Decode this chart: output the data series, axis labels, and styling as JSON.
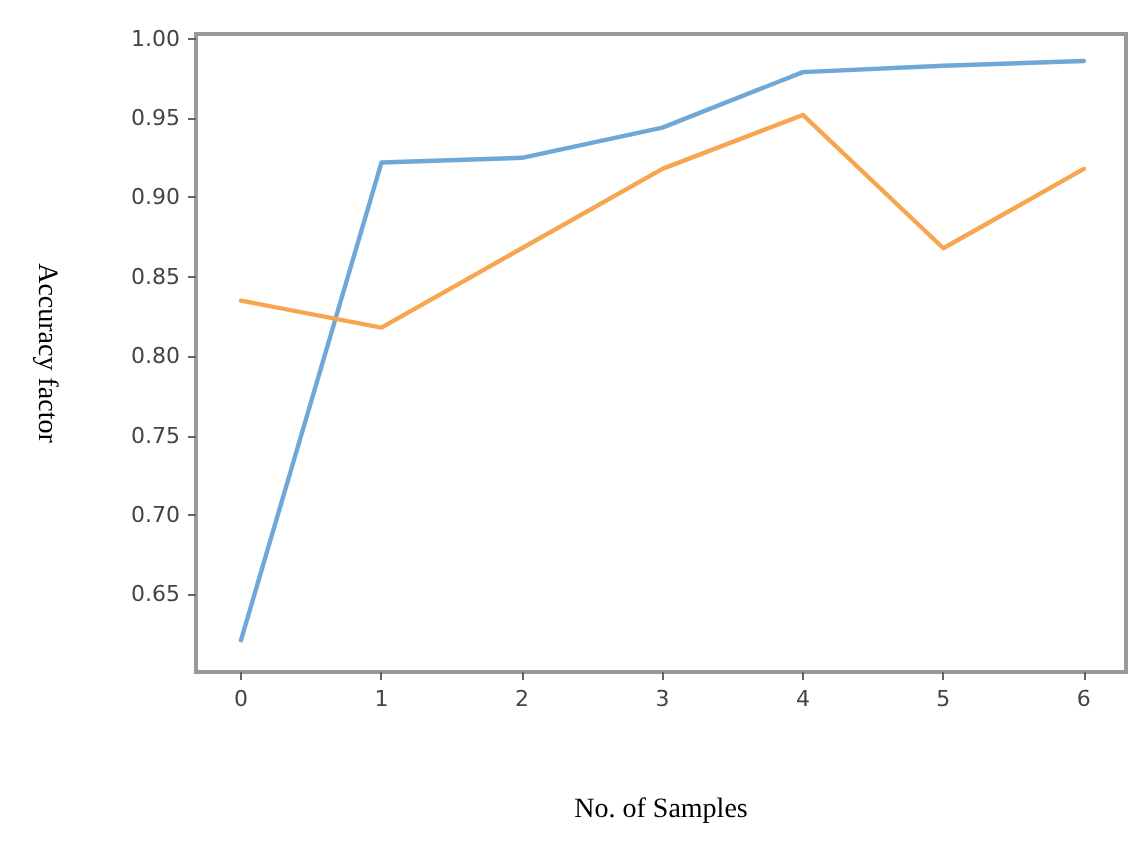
{
  "chart_data": {
    "type": "line",
    "xlabel": "No. of Samples",
    "ylabel": "Accuracy factor",
    "x": [
      0,
      1,
      2,
      3,
      4,
      5,
      6
    ],
    "series": [
      {
        "color": "#6fa8d6",
        "values": [
          0.621,
          0.922,
          0.925,
          0.944,
          0.979,
          0.983,
          0.986
        ]
      },
      {
        "color": "#f7a54e",
        "values": [
          0.835,
          0.818,
          0.868,
          0.918,
          0.952,
          0.868,
          0.918
        ]
      }
    ],
    "xlim": [
      -0.32,
      6.3
    ],
    "xticks": [
      0,
      1,
      2,
      3,
      4,
      5,
      6
    ],
    "ylim": [
      0.601,
      1.003
    ],
    "yticks": [
      0.65,
      {
        "value": 0.7,
        "label": "0.70"
      },
      0.75,
      {
        "value": 0.8,
        "label": "0.80"
      },
      0.85,
      {
        "value": 0.9,
        "label": "0.90"
      },
      0.95,
      {
        "value": 1.0,
        "label": "1.00"
      }
    ],
    "grid": false,
    "marker": "none",
    "line_style": "solid"
  }
}
